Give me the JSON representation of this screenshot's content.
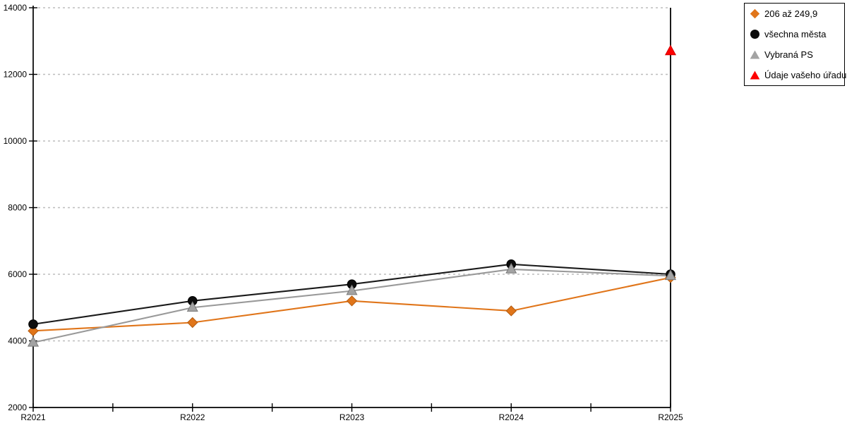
{
  "chart_data": {
    "type": "line",
    "title": "",
    "xlabel": "",
    "ylabel": "",
    "categories": [
      "R2021",
      "R2022",
      "R2023",
      "R2024",
      "R2025"
    ],
    "series": [
      {
        "name": "206 až 249,9",
        "marker": "diamond",
        "color": "#e0751a",
        "edge": "#b25a0e",
        "line": true,
        "values": [
          4300,
          4550,
          5200,
          4900,
          5900
        ]
      },
      {
        "name": "všechna města",
        "marker": "circle",
        "color": "#0d0d0d",
        "edge": "#000000",
        "line": true,
        "values": [
          4500,
          5200,
          5700,
          6300,
          6000
        ]
      },
      {
        "name": "Vybraná PS",
        "marker": "triangle",
        "color": "#a3a3a3",
        "edge": "#7a7a7a",
        "line": true,
        "values": [
          3950,
          5000,
          5500,
          6150,
          5950
        ]
      },
      {
        "name": "Údaje vašeho úřadu",
        "marker": "triangle",
        "color": "#fe0000",
        "edge": "#d40000",
        "line": false,
        "values": [
          null,
          null,
          null,
          null,
          12700
        ]
      }
    ],
    "line_colors": {
      "series_0": "#e0751a",
      "series_1": "#1a1a1a",
      "series_2": "#999999"
    },
    "ylim": [
      2000,
      14000
    ],
    "yticks": [
      2000,
      4000,
      6000,
      8000,
      10000,
      12000,
      14000
    ],
    "grid": "horizontal-dashed",
    "gridline_color": "#bdbdbd",
    "axis_color": "#000000",
    "legend_position": "top-right"
  }
}
